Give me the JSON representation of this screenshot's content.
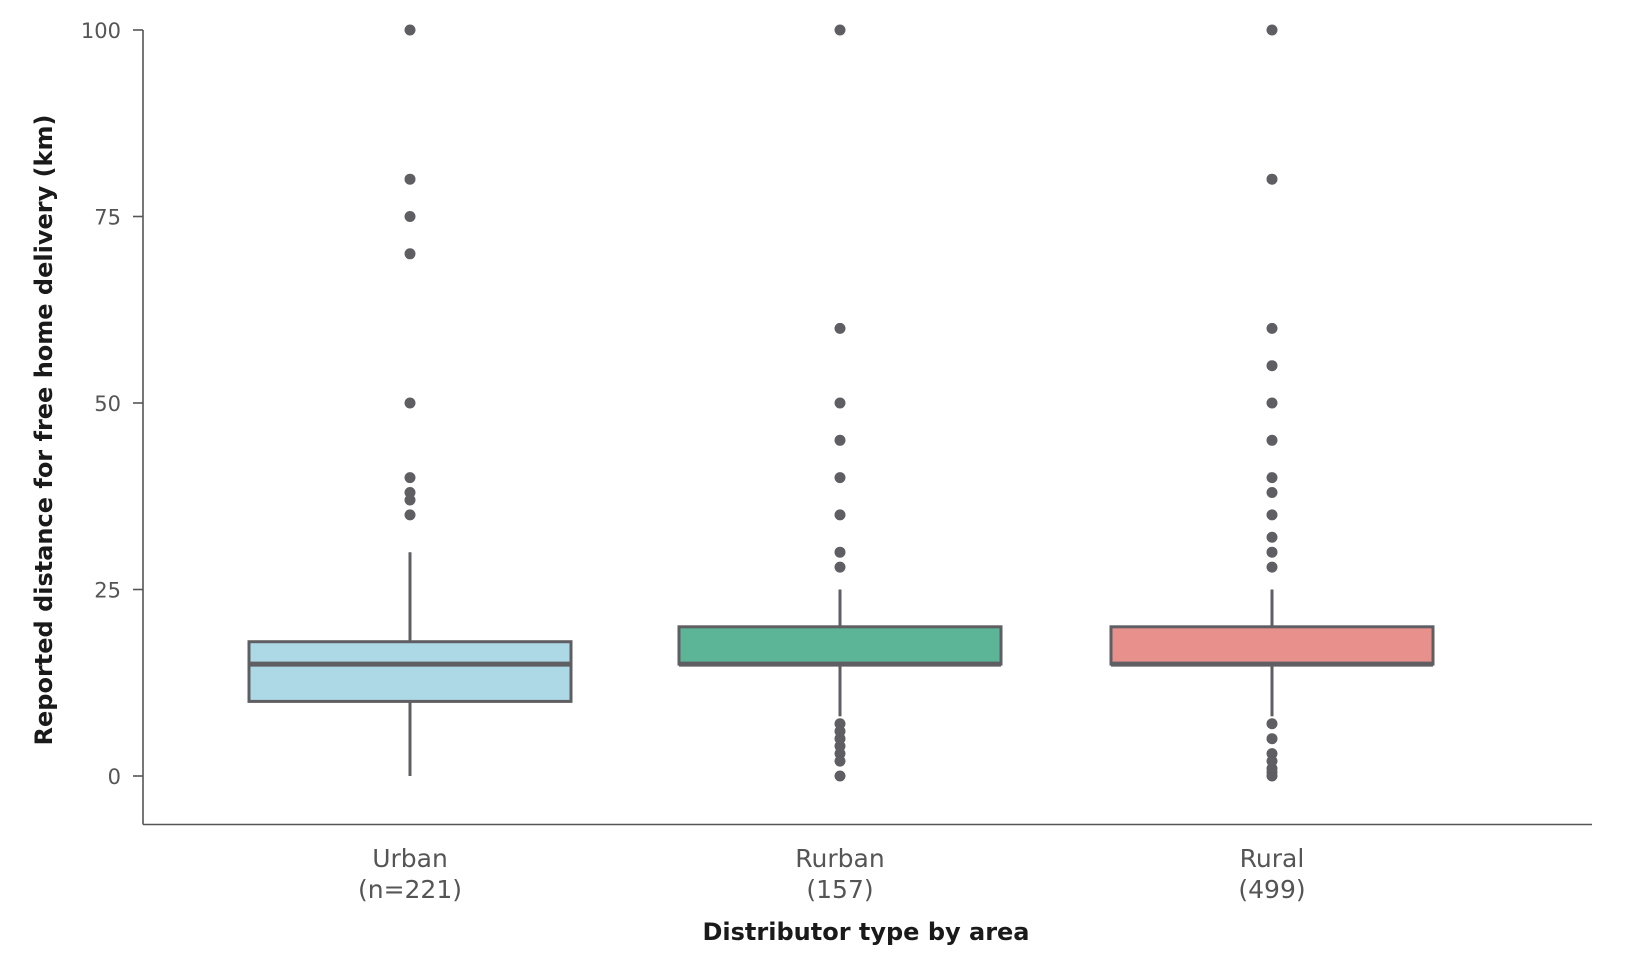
{
  "chart_data": {
    "type": "box",
    "xlabel": "Distributor type by area",
    "ylabel": "Reported distance for free home delivery (km)",
    "ylim": [
      -6.5,
      100
    ],
    "yticks": [
      0,
      25,
      50,
      75,
      100
    ],
    "grid": false,
    "categories": [
      {
        "label": "Urban",
        "count_label": "(n=221)",
        "color": "#ADD8E6",
        "q1": 10,
        "median": 15,
        "q3": 18,
        "whisker_low": 0,
        "whisker_high": 30,
        "outliers": [
          35,
          37,
          38,
          40,
          50,
          70,
          75,
          80,
          100
        ]
      },
      {
        "label": "Rurban",
        "count_label": "(157)",
        "color": "#5BB596",
        "q1": 15,
        "median": 15,
        "q3": 20,
        "whisker_low": 8,
        "whisker_high": 25,
        "outliers": [
          0,
          2,
          3,
          4,
          5,
          6,
          7,
          28,
          30,
          35,
          40,
          45,
          50,
          60,
          100
        ]
      },
      {
        "label": "Rural",
        "count_label": "(499)",
        "color": "#E8918C",
        "q1": 15,
        "median": 15,
        "q3": 20,
        "whisker_low": 8,
        "whisker_high": 25,
        "outliers": [
          0,
          0.5,
          1,
          2,
          3,
          5,
          7,
          28,
          30,
          32,
          35,
          38,
          40,
          45,
          50,
          55,
          60,
          80,
          100
        ]
      }
    ],
    "style": {
      "line_color": "#5f5f63",
      "outlier_color": "#5f5f63",
      "axis_color": "#555555"
    }
  }
}
